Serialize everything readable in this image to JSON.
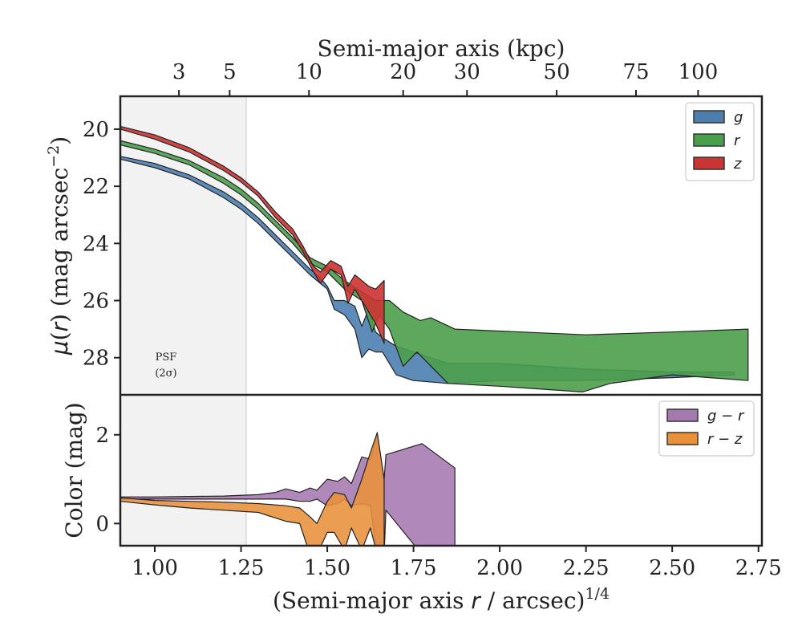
{
  "chart_data": [
    {
      "type": "area",
      "panel": "profile",
      "xlabel": "(Semi-major axis r / arcsec)^{1/4}",
      "ylabel": "μ(r) (mag arcsec^{-2})",
      "top_xlabel": "Semi-major axis (kpc)",
      "xlim": [
        0.9,
        2.76
      ],
      "ylim": [
        29.3,
        18.85
      ],
      "y_inverted": true,
      "x_ticks": [
        1.0,
        1.25,
        1.5,
        1.75,
        2.0,
        2.25,
        2.5,
        2.75
      ],
      "x_tick_labels": [
        "1.00",
        "1.25",
        "1.50",
        "1.75",
        "2.00",
        "2.25",
        "2.50",
        "2.75"
      ],
      "y_ticks": [
        20,
        22,
        24,
        26,
        28
      ],
      "y_tick_labels": [
        "20",
        "22",
        "24",
        "26",
        "28"
      ],
      "top_ticks": [
        {
          "x": 1.07,
          "label": "3"
        },
        {
          "x": 1.217,
          "label": "5"
        },
        {
          "x": 1.447,
          "label": "10"
        },
        {
          "x": 1.72,
          "label": "20"
        },
        {
          "x": 1.905,
          "label": "30"
        },
        {
          "x": 2.165,
          "label": "50"
        },
        {
          "x": 2.395,
          "label": "75"
        },
        {
          "x": 2.575,
          "label": "100"
        }
      ],
      "psf_region": {
        "x": [
          0.9,
          1.265
        ],
        "label_line1": "PSF",
        "label_line2": "(2σ)"
      },
      "legend": {
        "position": "top-right",
        "entries": [
          {
            "label": "g",
            "color": "#4c7fb0"
          },
          {
            "label": "r",
            "color": "#4b9e4b"
          },
          {
            "label": "z",
            "color": "#cc3333"
          }
        ]
      },
      "series": [
        {
          "name": "g",
          "color": "#4c7fb0",
          "upper": [
            [
              0.9,
              20.95
            ],
            [
              1.0,
              21.2
            ],
            [
              1.1,
              21.6
            ],
            [
              1.2,
              22.2
            ],
            [
              1.25,
              22.6
            ],
            [
              1.3,
              23.1
            ],
            [
              1.35,
              23.7
            ],
            [
              1.4,
              24.3
            ],
            [
              1.45,
              24.9
            ],
            [
              1.48,
              25.2
            ],
            [
              1.5,
              25.5
            ],
            [
              1.52,
              26.0
            ],
            [
              1.55,
              26.0
            ],
            [
              1.58,
              26.2
            ],
            [
              1.6,
              26.9
            ],
            [
              1.62,
              26.3
            ],
            [
              1.64,
              27.1
            ],
            [
              1.66,
              27.3
            ],
            [
              1.7,
              27.6
            ],
            [
              1.75,
              27.8
            ],
            [
              1.85,
              28.2
            ],
            [
              2.0,
              28.2
            ],
            [
              2.25,
              28.4
            ],
            [
              2.5,
              28.5
            ],
            [
              2.68,
              28.5
            ]
          ],
          "lower": [
            [
              0.9,
              21.05
            ],
            [
              1.0,
              21.35
            ],
            [
              1.1,
              21.75
            ],
            [
              1.2,
              22.4
            ],
            [
              1.25,
              22.8
            ],
            [
              1.3,
              23.3
            ],
            [
              1.35,
              23.9
            ],
            [
              1.4,
              24.5
            ],
            [
              1.45,
              25.1
            ],
            [
              1.48,
              25.4
            ],
            [
              1.5,
              25.6
            ],
            [
              1.52,
              26.3
            ],
            [
              1.55,
              26.5
            ],
            [
              1.58,
              27.0
            ],
            [
              1.6,
              28.0
            ],
            [
              1.62,
              27.7
            ],
            [
              1.64,
              27.8
            ],
            [
              1.66,
              27.8
            ],
            [
              1.7,
              28.6
            ],
            [
              1.75,
              28.8
            ],
            [
              1.85,
              28.9
            ],
            [
              2.0,
              28.8
            ],
            [
              2.25,
              28.8
            ],
            [
              2.5,
              28.7
            ],
            [
              2.68,
              28.6
            ]
          ]
        },
        {
          "name": "r",
          "color": "#4b9e4b",
          "upper": [
            [
              0.9,
              20.4
            ],
            [
              1.0,
              20.7
            ],
            [
              1.1,
              21.1
            ],
            [
              1.2,
              21.7
            ],
            [
              1.25,
              22.1
            ],
            [
              1.3,
              22.6
            ],
            [
              1.35,
              23.2
            ],
            [
              1.4,
              23.8
            ],
            [
              1.45,
              24.5
            ],
            [
              1.5,
              24.8
            ],
            [
              1.55,
              25.3
            ],
            [
              1.6,
              25.7
            ],
            [
              1.64,
              26.0
            ],
            [
              1.68,
              26.0
            ],
            [
              1.72,
              26.4
            ],
            [
              1.77,
              26.7
            ],
            [
              1.8,
              26.6
            ],
            [
              1.87,
              27.0
            ],
            [
              2.25,
              27.2
            ],
            [
              2.5,
              27.1
            ],
            [
              2.72,
              27.0
            ]
          ],
          "lower": [
            [
              0.9,
              20.55
            ],
            [
              1.0,
              20.85
            ],
            [
              1.1,
              21.25
            ],
            [
              1.2,
              21.9
            ],
            [
              1.25,
              22.3
            ],
            [
              1.3,
              22.8
            ],
            [
              1.35,
              23.4
            ],
            [
              1.4,
              24.0
            ],
            [
              1.45,
              24.7
            ],
            [
              1.5,
              25.0
            ],
            [
              1.55,
              25.6
            ],
            [
              1.6,
              26.0
            ],
            [
              1.63,
              27.1
            ],
            [
              1.65,
              26.5
            ],
            [
              1.68,
              27.0
            ],
            [
              1.72,
              28.3
            ],
            [
              1.76,
              27.8
            ],
            [
              1.85,
              28.9
            ],
            [
              2.0,
              29.0
            ],
            [
              2.24,
              29.2
            ],
            [
              2.32,
              28.9
            ],
            [
              2.5,
              28.6
            ],
            [
              2.72,
              28.8
            ]
          ]
        },
        {
          "name": "z",
          "color": "#cc3333",
          "upper": [
            [
              0.9,
              19.9
            ],
            [
              1.0,
              20.2
            ],
            [
              1.1,
              20.65
            ],
            [
              1.2,
              21.3
            ],
            [
              1.25,
              21.7
            ],
            [
              1.3,
              22.2
            ],
            [
              1.35,
              22.9
            ],
            [
              1.4,
              23.5
            ],
            [
              1.43,
              24.1
            ],
            [
              1.46,
              24.8
            ],
            [
              1.48,
              25.0
            ],
            [
              1.51,
              24.6
            ],
            [
              1.54,
              24.8
            ],
            [
              1.56,
              25.5
            ],
            [
              1.58,
              25.1
            ],
            [
              1.62,
              25.5
            ],
            [
              1.64,
              25.6
            ],
            [
              1.665,
              25.3
            ]
          ],
          "lower": [
            [
              0.9,
              20.0
            ],
            [
              1.0,
              20.35
            ],
            [
              1.1,
              20.8
            ],
            [
              1.2,
              21.45
            ],
            [
              1.25,
              21.85
            ],
            [
              1.3,
              22.35
            ],
            [
              1.35,
              23.1
            ],
            [
              1.4,
              23.7
            ],
            [
              1.43,
              24.3
            ],
            [
              1.46,
              25.0
            ],
            [
              1.48,
              25.4
            ],
            [
              1.51,
              24.9
            ],
            [
              1.54,
              25.1
            ],
            [
              1.56,
              26.1
            ],
            [
              1.58,
              25.6
            ],
            [
              1.62,
              26.4
            ],
            [
              1.64,
              26.8
            ],
            [
              1.665,
              27.5
            ]
          ]
        }
      ]
    },
    {
      "type": "area",
      "panel": "color",
      "xlabel": "(Semi-major axis r / arcsec)^{1/4}",
      "ylabel": "Color (mag)",
      "xlim": [
        0.9,
        2.76
      ],
      "ylim": [
        -0.5,
        2.9
      ],
      "x_ticks": [
        1.0,
        1.25,
        1.5,
        1.75,
        2.0,
        2.25,
        2.5,
        2.75
      ],
      "x_tick_labels": [
        "1.00",
        "1.25",
        "1.50",
        "1.75",
        "2.00",
        "2.25",
        "2.50",
        "2.75"
      ],
      "y_ticks": [
        0,
        2
      ],
      "y_tick_labels": [
        "0",
        "2"
      ],
      "legend": {
        "position": "top-right",
        "entries": [
          {
            "label": "g − r",
            "color": "#a678b0"
          },
          {
            "label": "r − z",
            "color": "#e8913a"
          }
        ]
      },
      "series": [
        {
          "name": "g − r",
          "color": "#a678b0",
          "upper": [
            [
              0.9,
              0.6
            ],
            [
              1.0,
              0.6
            ],
            [
              1.2,
              0.62
            ],
            [
              1.3,
              0.65
            ],
            [
              1.35,
              0.7
            ],
            [
              1.38,
              0.78
            ],
            [
              1.42,
              0.7
            ],
            [
              1.45,
              0.8
            ],
            [
              1.47,
              0.75
            ],
            [
              1.5,
              1.0
            ],
            [
              1.53,
              0.95
            ],
            [
              1.55,
              1.05
            ],
            [
              1.57,
              0.9
            ],
            [
              1.6,
              1.5
            ],
            [
              1.625,
              1.45
            ],
            [
              1.645,
              2.0
            ],
            [
              1.665,
              1.0
            ],
            [
              1.67,
              1.55
            ],
            [
              1.775,
              1.8
            ],
            [
              1.87,
              1.25
            ]
          ],
          "upper_end": true,
          "lower": [
            [
              0.9,
              0.55
            ],
            [
              1.0,
              0.55
            ],
            [
              1.2,
              0.55
            ],
            [
              1.3,
              0.55
            ],
            [
              1.35,
              0.55
            ],
            [
              1.38,
              0.55
            ],
            [
              1.42,
              0.5
            ],
            [
              1.45,
              0.5
            ],
            [
              1.47,
              0.55
            ],
            [
              1.5,
              0.4
            ],
            [
              1.53,
              0.45
            ],
            [
              1.55,
              0.55
            ],
            [
              1.57,
              0.4
            ],
            [
              1.6,
              0.45
            ],
            [
              1.625,
              0.4
            ],
            [
              1.645,
              -0.7
            ],
            [
              1.665,
              -0.7
            ],
            [
              1.67,
              0.3
            ],
            [
              1.775,
              -0.7
            ],
            [
              1.87,
              -0.7
            ]
          ]
        },
        {
          "name": "r − z",
          "color": "#e8913a",
          "upper": [
            [
              0.9,
              0.58
            ],
            [
              1.0,
              0.52
            ],
            [
              1.1,
              0.5
            ],
            [
              1.2,
              0.48
            ],
            [
              1.3,
              0.45
            ],
            [
              1.38,
              0.4
            ],
            [
              1.42,
              0.35
            ],
            [
              1.45,
              0.15
            ],
            [
              1.47,
              0.0
            ],
            [
              1.5,
              0.5
            ],
            [
              1.52,
              0.7
            ],
            [
              1.55,
              0.65
            ],
            [
              1.57,
              0.35
            ],
            [
              1.6,
              1.0
            ],
            [
              1.625,
              1.6
            ],
            [
              1.645,
              2.05
            ],
            [
              1.665,
              1.0
            ]
          ],
          "lower": [
            [
              0.9,
              0.5
            ],
            [
              1.0,
              0.42
            ],
            [
              1.1,
              0.35
            ],
            [
              1.2,
              0.3
            ],
            [
              1.3,
              0.25
            ],
            [
              1.38,
              0.05
            ],
            [
              1.42,
              0.0
            ],
            [
              1.45,
              -0.7
            ],
            [
              1.47,
              -0.7
            ],
            [
              1.5,
              -0.2
            ],
            [
              1.52,
              -0.2
            ],
            [
              1.55,
              -0.6
            ],
            [
              1.57,
              -0.1
            ],
            [
              1.6,
              -0.6
            ],
            [
              1.625,
              -0.1
            ],
            [
              1.645,
              -0.7
            ],
            [
              1.665,
              -0.7
            ]
          ]
        }
      ]
    }
  ]
}
